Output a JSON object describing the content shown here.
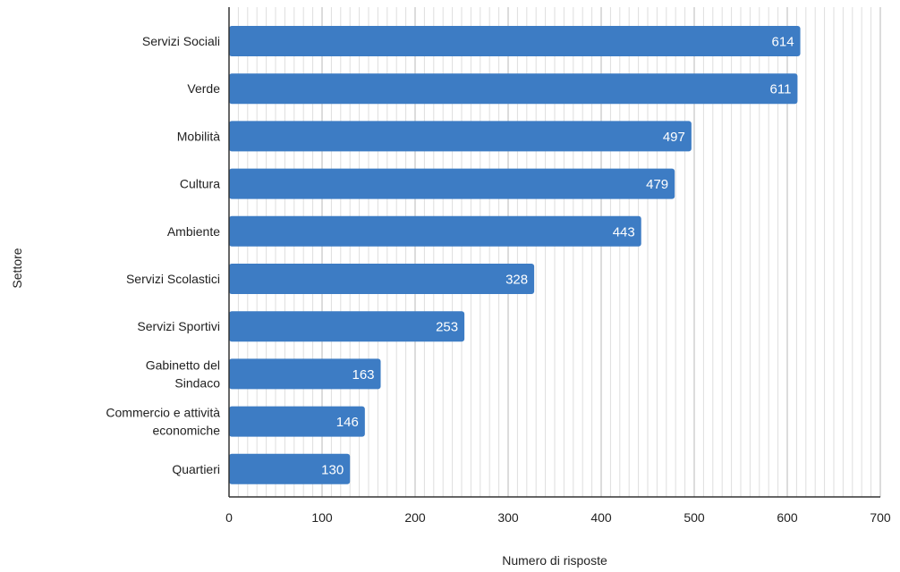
{
  "chart_data": {
    "type": "bar",
    "orientation": "horizontal",
    "categories": [
      "Servizi Sociali",
      "Verde",
      "Mobilità",
      "Cultura",
      "Ambiente",
      "Servizi Scolastici",
      "Servizi Sportivi",
      "Gabinetto del Sindaco",
      "Commercio e attività economiche",
      "Quartieri"
    ],
    "category_lines": [
      [
        "Servizi Sociali"
      ],
      [
        "Verde"
      ],
      [
        "Mobilità"
      ],
      [
        "Cultura"
      ],
      [
        "Ambiente"
      ],
      [
        "Servizi Scolastici"
      ],
      [
        "Servizi Sportivi"
      ],
      [
        "Gabinetto del",
        "Sindaco"
      ],
      [
        "Commercio e attività",
        "economiche"
      ],
      [
        "Quartieri"
      ]
    ],
    "values": [
      614,
      611,
      497,
      479,
      443,
      328,
      253,
      163,
      146,
      130
    ],
    "xlabel": "Numero di risposte",
    "ylabel": "Settore",
    "xlim": [
      0,
      700
    ],
    "xticks": [
      0,
      100,
      200,
      300,
      400,
      500,
      600,
      700
    ],
    "minor_grid_step": 10,
    "grid": true,
    "data_labels": true,
    "legend": "none",
    "bar_color": "#3D7CC4"
  }
}
